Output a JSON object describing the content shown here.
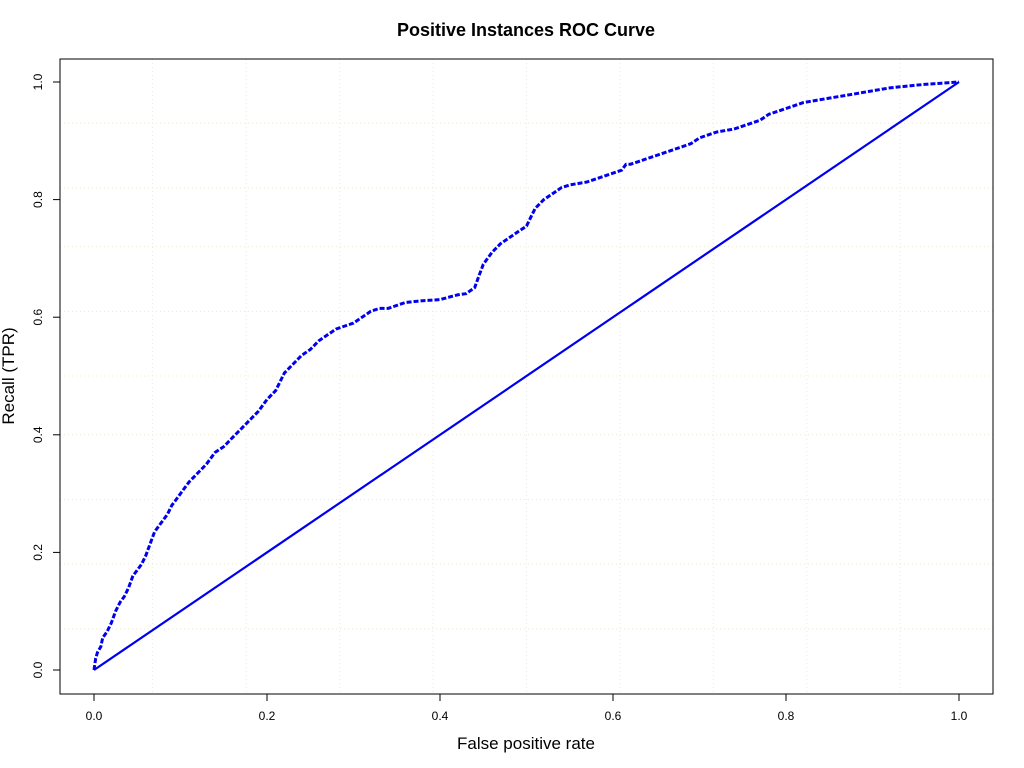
{
  "chart_data": {
    "type": "line",
    "title": "Positive Instances ROC Curve",
    "xlabel": "False positive rate",
    "ylabel": "Recall (TPR)",
    "xlim": [
      0,
      1
    ],
    "ylim": [
      0,
      1
    ],
    "x_ticks": [
      "0.0",
      "0.2",
      "0.4",
      "0.6",
      "0.8",
      "1.0"
    ],
    "y_ticks": [
      "0.0",
      "0.2",
      "0.4",
      "0.6",
      "0.8",
      "1.0"
    ],
    "grid": true,
    "grid_color": "#e8ecd0",
    "colors": {
      "curve": "#0000ee",
      "diagonal": "#0000ee",
      "axis": "#000000"
    },
    "series": [
      {
        "style": "dashed",
        "x": [
          0.0,
          0.002,
          0.004,
          0.008,
          0.01,
          0.015,
          0.02,
          0.025,
          0.03,
          0.035,
          0.04,
          0.045,
          0.05,
          0.055,
          0.06,
          0.065,
          0.07,
          0.075,
          0.08,
          0.085,
          0.09,
          0.095,
          0.1,
          0.11,
          0.12,
          0.13,
          0.14,
          0.15,
          0.16,
          0.17,
          0.18,
          0.19,
          0.2,
          0.21,
          0.215,
          0.22,
          0.23,
          0.24,
          0.25,
          0.26,
          0.27,
          0.28,
          0.29,
          0.3,
          0.31,
          0.32,
          0.33,
          0.34,
          0.35,
          0.36,
          0.38,
          0.4,
          0.42,
          0.43,
          0.44,
          0.445,
          0.45,
          0.455,
          0.46,
          0.47,
          0.48,
          0.49,
          0.5,
          0.505,
          0.51,
          0.52,
          0.53,
          0.535,
          0.54,
          0.55,
          0.57,
          0.59,
          0.61,
          0.615,
          0.62,
          0.63,
          0.64,
          0.65,
          0.66,
          0.67,
          0.68,
          0.69,
          0.7,
          0.71,
          0.72,
          0.74,
          0.76,
          0.77,
          0.78,
          0.79,
          0.8,
          0.82,
          0.84,
          0.86,
          0.88,
          0.9,
          0.92,
          0.94,
          0.96,
          0.98,
          1.0
        ],
        "y": [
          0.0,
          0.02,
          0.03,
          0.04,
          0.055,
          0.065,
          0.08,
          0.1,
          0.115,
          0.125,
          0.14,
          0.16,
          0.17,
          0.18,
          0.195,
          0.215,
          0.235,
          0.245,
          0.255,
          0.265,
          0.28,
          0.29,
          0.3,
          0.32,
          0.335,
          0.35,
          0.37,
          0.38,
          0.395,
          0.41,
          0.425,
          0.44,
          0.46,
          0.475,
          0.49,
          0.505,
          0.52,
          0.535,
          0.545,
          0.56,
          0.57,
          0.58,
          0.585,
          0.59,
          0.6,
          0.61,
          0.615,
          0.615,
          0.62,
          0.625,
          0.628,
          0.63,
          0.638,
          0.64,
          0.65,
          0.67,
          0.69,
          0.7,
          0.71,
          0.725,
          0.735,
          0.745,
          0.755,
          0.77,
          0.785,
          0.8,
          0.81,
          0.815,
          0.82,
          0.825,
          0.83,
          0.84,
          0.85,
          0.86,
          0.86,
          0.865,
          0.87,
          0.875,
          0.88,
          0.885,
          0.89,
          0.895,
          0.905,
          0.91,
          0.915,
          0.92,
          0.93,
          0.935,
          0.945,
          0.95,
          0.955,
          0.965,
          0.97,
          0.975,
          0.98,
          0.985,
          0.99,
          0.993,
          0.996,
          0.998,
          1.0
        ]
      },
      {
        "style": "solid",
        "x": [
          0.0,
          1.0
        ],
        "y": [
          0.0,
          1.0
        ]
      }
    ]
  }
}
